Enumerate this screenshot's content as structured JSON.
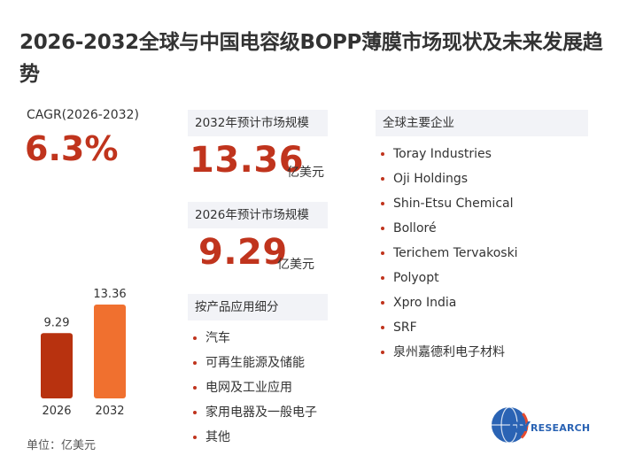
{
  "title": "2026-2032全球与中国电容级BOPP薄膜市场现状及未来发展趋势",
  "cagr": {
    "label": "CAGR(2026-2032)",
    "value": "6.3%"
  },
  "market_2032": {
    "label": "2032年预计市场规模",
    "value": "13.36",
    "unit": "亿美元"
  },
  "market_2026": {
    "label": "2026年预计市场规模",
    "value": "9.29",
    "unit": "亿美元"
  },
  "applications": {
    "label": "按产品应用细分",
    "items": [
      "汽车",
      "可再生能源及储能",
      "电网及工业应用",
      "家用电器及一般电子",
      "其他"
    ]
  },
  "companies": {
    "label": "全球主要企业",
    "items": [
      "Toray Industries",
      "Oji Holdings",
      "Shin-Etsu Chemical",
      "Bolloré",
      "Terichem Tervakoski",
      "Polyopt",
      "Xpro India",
      "SRF",
      "泉州嘉德利电子材料"
    ]
  },
  "unit_note": "单位：亿美元",
  "logo": {
    "text_main": "QY",
    "text_sub": "RESEARCH"
  },
  "colors": {
    "accent": "#c0341d",
    "bar_2026": "#b8320f",
    "bar_2032": "#f0702f",
    "panel": "#f2f3f7",
    "logo": "#2a63b4"
  },
  "chart_data": {
    "type": "bar",
    "categories": [
      "2026",
      "2032"
    ],
    "values": [
      9.29,
      13.36
    ],
    "ylim": [
      0,
      13.36
    ],
    "grid": false,
    "legend": "none"
  }
}
